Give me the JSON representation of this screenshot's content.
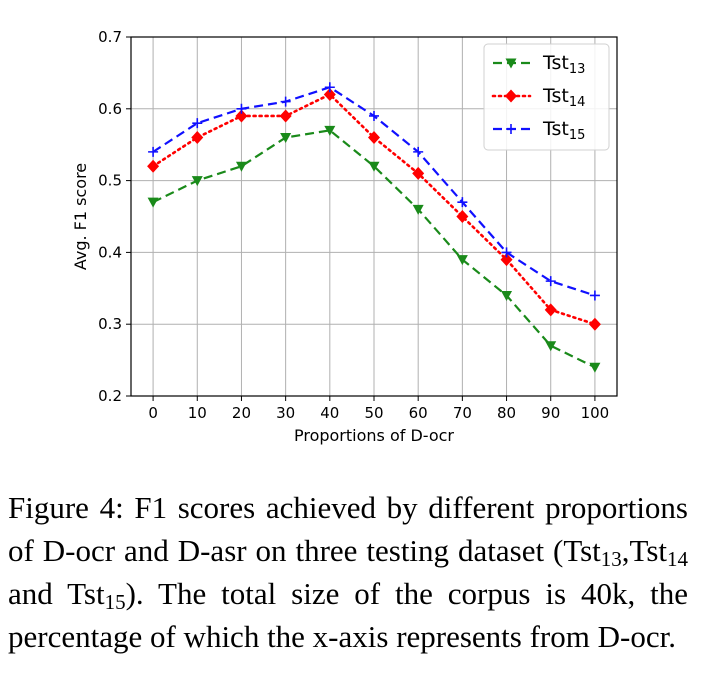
{
  "chart_data": {
    "type": "line",
    "title": "",
    "xlabel": "Proportions of D-ocr",
    "ylabel": "Avg. F1 score",
    "x": [
      0,
      10,
      20,
      30,
      40,
      50,
      60,
      70,
      80,
      90,
      100
    ],
    "xticks": [
      "0",
      "10",
      "20",
      "30",
      "40",
      "50",
      "60",
      "70",
      "80",
      "90",
      "100"
    ],
    "yticks": [
      "0.2",
      "0.3",
      "0.4",
      "0.5",
      "0.6",
      "0.7"
    ],
    "xlim": [
      -5,
      105
    ],
    "ylim": [
      0.2,
      0.7
    ],
    "grid": true,
    "legend_position": "top-right",
    "series": [
      {
        "name_base": "Tst",
        "name_sub": "13",
        "color": "#1a8a1a",
        "line_style": "dashed",
        "marker": "triangle-down",
        "values": [
          0.47,
          0.5,
          0.52,
          0.56,
          0.57,
          0.52,
          0.46,
          0.39,
          0.34,
          0.27,
          0.24
        ]
      },
      {
        "name_base": "Tst",
        "name_sub": "14",
        "color": "#ff0000",
        "line_style": "dotted",
        "marker": "diamond",
        "values": [
          0.52,
          0.56,
          0.59,
          0.59,
          0.62,
          0.56,
          0.51,
          0.45,
          0.39,
          0.32,
          0.3
        ]
      },
      {
        "name_base": "Tst",
        "name_sub": "15",
        "color": "#1010ff",
        "line_style": "dashed",
        "marker": "plus",
        "values": [
          0.54,
          0.58,
          0.6,
          0.61,
          0.63,
          0.59,
          0.54,
          0.47,
          0.4,
          0.36,
          0.34
        ]
      }
    ]
  },
  "caption": {
    "part1": "Figure 4:  F1 scores achieved by different proportions of D-ocr and D-asr on three testing dataset (",
    "t13_base": "Tst",
    "t13_sub": "13",
    "sep1": ",",
    "t14_base": "Tst",
    "t14_sub": "14",
    "mid": " and ",
    "t15_base": "Tst",
    "t15_sub": "15",
    "part2": ").  The total size of the corpus is 40k, the percentage of which the x-axis represents from D-ocr."
  }
}
